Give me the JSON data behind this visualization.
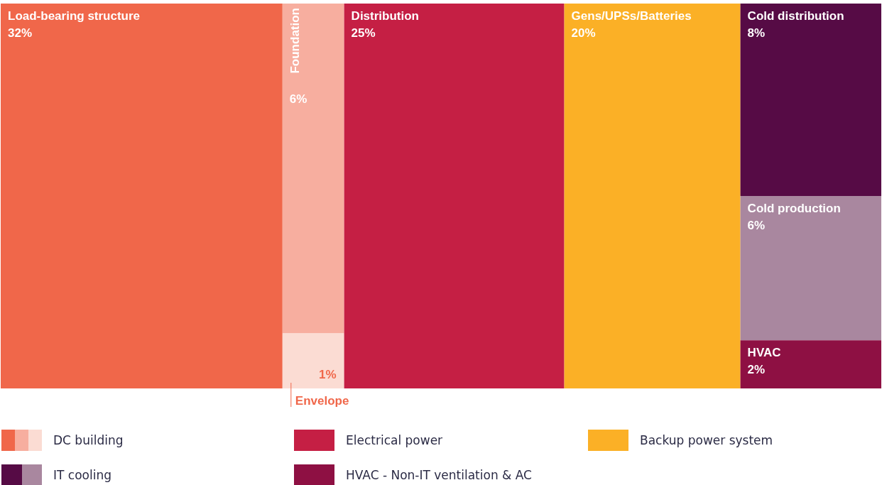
{
  "chart_data": {
    "type": "other",
    "legend": "bottom",
    "categories": [
      "Load-bearing structure",
      "Foundation",
      "Envelope",
      "Distribution",
      "Gens/UPSs/Batteries",
      "Cold distribution",
      "Cold production",
      "HVAC"
    ],
    "series": [
      {
        "name": "DC building",
        "values": [
          32,
          6,
          1,
          null,
          null,
          null,
          null,
          null
        ],
        "value_labels": [
          "32%",
          "6%",
          "1%",
          null,
          null,
          null,
          null,
          null
        ],
        "colors": [
          "#f0674a",
          "#f7ae9f",
          "#fbdcd3",
          null,
          null,
          null,
          null,
          null
        ]
      },
      {
        "name": "Electrical power",
        "values": [
          null,
          null,
          null,
          25,
          null,
          null,
          null,
          null
        ],
        "value_labels": [
          null,
          null,
          null,
          "25%",
          null,
          null,
          null,
          null
        ],
        "colors": [
          null,
          null,
          null,
          "#c51f44",
          null,
          null,
          null,
          null
        ]
      },
      {
        "name": "Backup power system",
        "values": [
          null,
          null,
          null,
          null,
          20,
          null,
          null,
          null
        ],
        "value_labels": [
          null,
          null,
          null,
          null,
          "20%",
          null,
          null,
          null
        ],
        "colors": [
          null,
          null,
          null,
          null,
          "#fbb026",
          null,
          null,
          null
        ]
      },
      {
        "name": "IT cooling",
        "values": [
          null,
          null,
          null,
          null,
          null,
          8,
          6,
          null
        ],
        "value_labels": [
          null,
          null,
          null,
          null,
          null,
          "8%",
          "6%",
          null
        ],
        "colors": [
          null,
          null,
          null,
          null,
          null,
          "#560b45",
          "#a9879f",
          null
        ]
      },
      {
        "name": "HVAC - Non-IT ventilation & AC",
        "values": [
          null,
          null,
          null,
          null,
          null,
          null,
          null,
          2
        ],
        "value_labels": [
          null,
          null,
          null,
          null,
          null,
          null,
          null,
          "2%"
        ],
        "colors": [
          null,
          null,
          null,
          null,
          null,
          null,
          null,
          "#8e1043"
        ]
      }
    ]
  }
}
